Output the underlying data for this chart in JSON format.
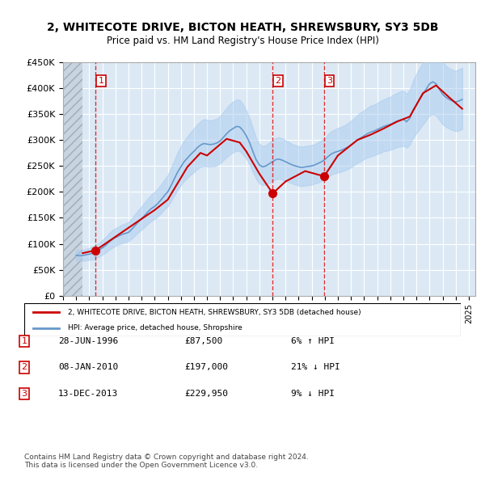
{
  "title": "2, WHITECOTE DRIVE, BICTON HEATH, SHREWSBURY, SY3 5DB",
  "subtitle": "Price paid vs. HM Land Registry's House Price Index (HPI)",
  "ylabel_ticks": [
    "£0",
    "£50K",
    "£100K",
    "£150K",
    "£200K",
    "£250K",
    "£300K",
    "£350K",
    "£400K",
    "£450K"
  ],
  "ytick_vals": [
    0,
    50000,
    100000,
    150000,
    200000,
    250000,
    300000,
    350000,
    400000,
    450000
  ],
  "ylim": [
    0,
    450000
  ],
  "xlim_start": 1994.0,
  "xlim_end": 2025.5,
  "hatch_end": 1995.5,
  "background_color": "#dce9f5",
  "plot_bg_color": "#dce9f5",
  "grid_color": "#ffffff",
  "hatch_color": "#c0c8d8",
  "red_line_color": "#cc0000",
  "blue_line_color": "#6699cc",
  "blue_fill_color": "#aaccee",
  "transaction_line_color": "#dd0000",
  "marker_color": "#cc0000",
  "transactions": [
    {
      "num": 1,
      "date": "28-JUN-1996",
      "price": 87500,
      "x": 1996.49,
      "pct": "6%",
      "dir": "↑"
    },
    {
      "num": 2,
      "date": "08-JAN-2010",
      "price": 197000,
      "x": 2010.02,
      "pct": "21%",
      "dir": "↓"
    },
    {
      "num": 3,
      "date": "13-DEC-2013",
      "price": 229950,
      "x": 2013.95,
      "pct": "9%",
      "dir": "↓"
    }
  ],
  "legend_line1": "2, WHITECOTE DRIVE, BICTON HEATH, SHREWSBURY, SY3 5DB (detached house)",
  "legend_line2": "HPI: Average price, detached house, Shropshire",
  "footnote": "Contains HM Land Registry data © Crown copyright and database right 2024.\nThis data is licensed under the Open Government Licence v3.0.",
  "hpi_data": {
    "years": [
      1995.0,
      1995.25,
      1995.5,
      1995.75,
      1996.0,
      1996.25,
      1996.5,
      1996.75,
      1997.0,
      1997.25,
      1997.5,
      1997.75,
      1998.0,
      1998.25,
      1998.5,
      1998.75,
      1999.0,
      1999.25,
      1999.5,
      1999.75,
      2000.0,
      2000.25,
      2000.5,
      2000.75,
      2001.0,
      2001.25,
      2001.5,
      2001.75,
      2002.0,
      2002.25,
      2002.5,
      2002.75,
      2003.0,
      2003.25,
      2003.5,
      2003.75,
      2004.0,
      2004.25,
      2004.5,
      2004.75,
      2005.0,
      2005.25,
      2005.5,
      2005.75,
      2006.0,
      2006.25,
      2006.5,
      2006.75,
      2007.0,
      2007.25,
      2007.5,
      2007.75,
      2008.0,
      2008.25,
      2008.5,
      2008.75,
      2009.0,
      2009.25,
      2009.5,
      2009.75,
      2010.0,
      2010.25,
      2010.5,
      2010.75,
      2011.0,
      2011.25,
      2011.5,
      2011.75,
      2012.0,
      2012.25,
      2012.5,
      2012.75,
      2013.0,
      2013.25,
      2013.5,
      2013.75,
      2014.0,
      2014.25,
      2014.5,
      2014.75,
      2015.0,
      2015.25,
      2015.5,
      2015.75,
      2016.0,
      2016.25,
      2016.5,
      2016.75,
      2017.0,
      2017.25,
      2017.5,
      2017.75,
      2018.0,
      2018.25,
      2018.5,
      2018.75,
      2019.0,
      2019.25,
      2019.5,
      2019.75,
      2020.0,
      2020.25,
      2020.5,
      2020.75,
      2021.0,
      2021.25,
      2021.5,
      2021.75,
      2022.0,
      2022.25,
      2022.5,
      2022.75,
      2023.0,
      2023.25,
      2023.5,
      2023.75,
      2024.0,
      2024.25,
      2024.5
    ],
    "values": [
      78000,
      77000,
      77500,
      79000,
      80000,
      82000,
      85000,
      88000,
      92000,
      97000,
      103000,
      108000,
      112000,
      115000,
      118000,
      120000,
      122000,
      128000,
      135000,
      142000,
      148000,
      155000,
      162000,
      168000,
      172000,
      178000,
      185000,
      193000,
      200000,
      212000,
      225000,
      238000,
      248000,
      258000,
      265000,
      272000,
      278000,
      285000,
      290000,
      293000,
      292000,
      291000,
      292000,
      294000,
      298000,
      305000,
      312000,
      318000,
      322000,
      326000,
      325000,
      318000,
      308000,
      295000,
      278000,
      262000,
      252000,
      248000,
      250000,
      254000,
      258000,
      262000,
      263000,
      261000,
      258000,
      255000,
      252000,
      250000,
      248000,
      247000,
      248000,
      249000,
      250000,
      252000,
      255000,
      258000,
      262000,
      268000,
      273000,
      276000,
      278000,
      280000,
      283000,
      286000,
      290000,
      295000,
      300000,
      304000,
      308000,
      312000,
      315000,
      317000,
      320000,
      323000,
      326000,
      328000,
      330000,
      333000,
      336000,
      338000,
      340000,
      335000,
      342000,
      358000,
      368000,
      378000,
      388000,
      398000,
      408000,
      412000,
      408000,
      398000,
      388000,
      382000,
      378000,
      375000,
      373000,
      375000,
      378000
    ],
    "upper": [
      88000,
      87000,
      88000,
      90000,
      92000,
      95000,
      98000,
      102000,
      107000,
      113000,
      120000,
      126000,
      130000,
      133000,
      137000,
      139000,
      142000,
      149000,
      157000,
      165000,
      172000,
      180000,
      188000,
      195000,
      200000,
      207000,
      215000,
      224000,
      232000,
      246000,
      261000,
      276000,
      288000,
      299000,
      307000,
      315000,
      322000,
      330000,
      336000,
      340000,
      339000,
      337000,
      339000,
      341000,
      346000,
      354000,
      362000,
      369000,
      374000,
      378000,
      377000,
      369000,
      357000,
      342000,
      323000,
      304000,
      292000,
      288000,
      290000,
      295000,
      299000,
      304000,
      305000,
      303000,
      299000,
      296000,
      292000,
      290000,
      288000,
      287000,
      288000,
      289000,
      290000,
      292000,
      296000,
      299000,
      304000,
      311000,
      317000,
      320000,
      323000,
      325000,
      328000,
      332000,
      337000,
      342000,
      348000,
      353000,
      357000,
      362000,
      366000,
      368000,
      371000,
      375000,
      378000,
      381000,
      383000,
      387000,
      390000,
      393000,
      395000,
      389000,
      397000,
      415000,
      427000,
      439000,
      450000,
      462000,
      473000,
      478000,
      473000,
      462000,
      450000,
      443000,
      438000,
      435000,
      433000,
      436000,
      439000
    ],
    "lower": [
      68000,
      67000,
      67000,
      68000,
      69000,
      70000,
      73000,
      75000,
      79000,
      83000,
      88000,
      92000,
      96000,
      99000,
      101000,
      103000,
      105000,
      110000,
      116000,
      122000,
      127000,
      133000,
      139000,
      144000,
      148000,
      153000,
      159000,
      166000,
      172000,
      182000,
      193000,
      204000,
      213000,
      221000,
      227000,
      233000,
      238000,
      244000,
      248000,
      250000,
      249000,
      249000,
      249000,
      251000,
      255000,
      261000,
      267000,
      272000,
      276000,
      279000,
      278000,
      272000,
      264000,
      253000,
      238000,
      225000,
      216000,
      213000,
      214000,
      217000,
      221000,
      224000,
      225000,
      224000,
      221000,
      219000,
      216000,
      214000,
      212000,
      211000,
      212000,
      213000,
      214000,
      216000,
      218000,
      221000,
      224000,
      229000,
      233000,
      236000,
      237000,
      239000,
      241000,
      244000,
      247000,
      252000,
      256000,
      259000,
      263000,
      266000,
      268000,
      270000,
      273000,
      275000,
      278000,
      279000,
      281000,
      283000,
      286000,
      287000,
      289000,
      285000,
      291000,
      304000,
      313000,
      321000,
      330000,
      338000,
      347000,
      350000,
      347000,
      338000,
      330000,
      325000,
      322000,
      319000,
      317000,
      318000,
      321000
    ]
  },
  "price_data": {
    "years": [
      1995.5,
      1996.49,
      2000.0,
      2001.0,
      2002.0,
      2003.5,
      2004.5,
      2005.0,
      2006.5,
      2007.5,
      2008.0,
      2009.0,
      2010.02,
      2011.0,
      2012.5,
      2013.95,
      2015.0,
      2016.5,
      2017.5,
      2018.5,
      2019.5,
      2020.5,
      2021.5,
      2022.5,
      2023.5,
      2024.5
    ],
    "values": [
      82000,
      87500,
      148000,
      165000,
      185000,
      248000,
      275000,
      270000,
      302000,
      295000,
      278000,
      235000,
      197000,
      220000,
      240000,
      229950,
      270000,
      300000,
      310000,
      322000,
      335000,
      345000,
      390000,
      405000,
      382000,
      360000
    ]
  }
}
